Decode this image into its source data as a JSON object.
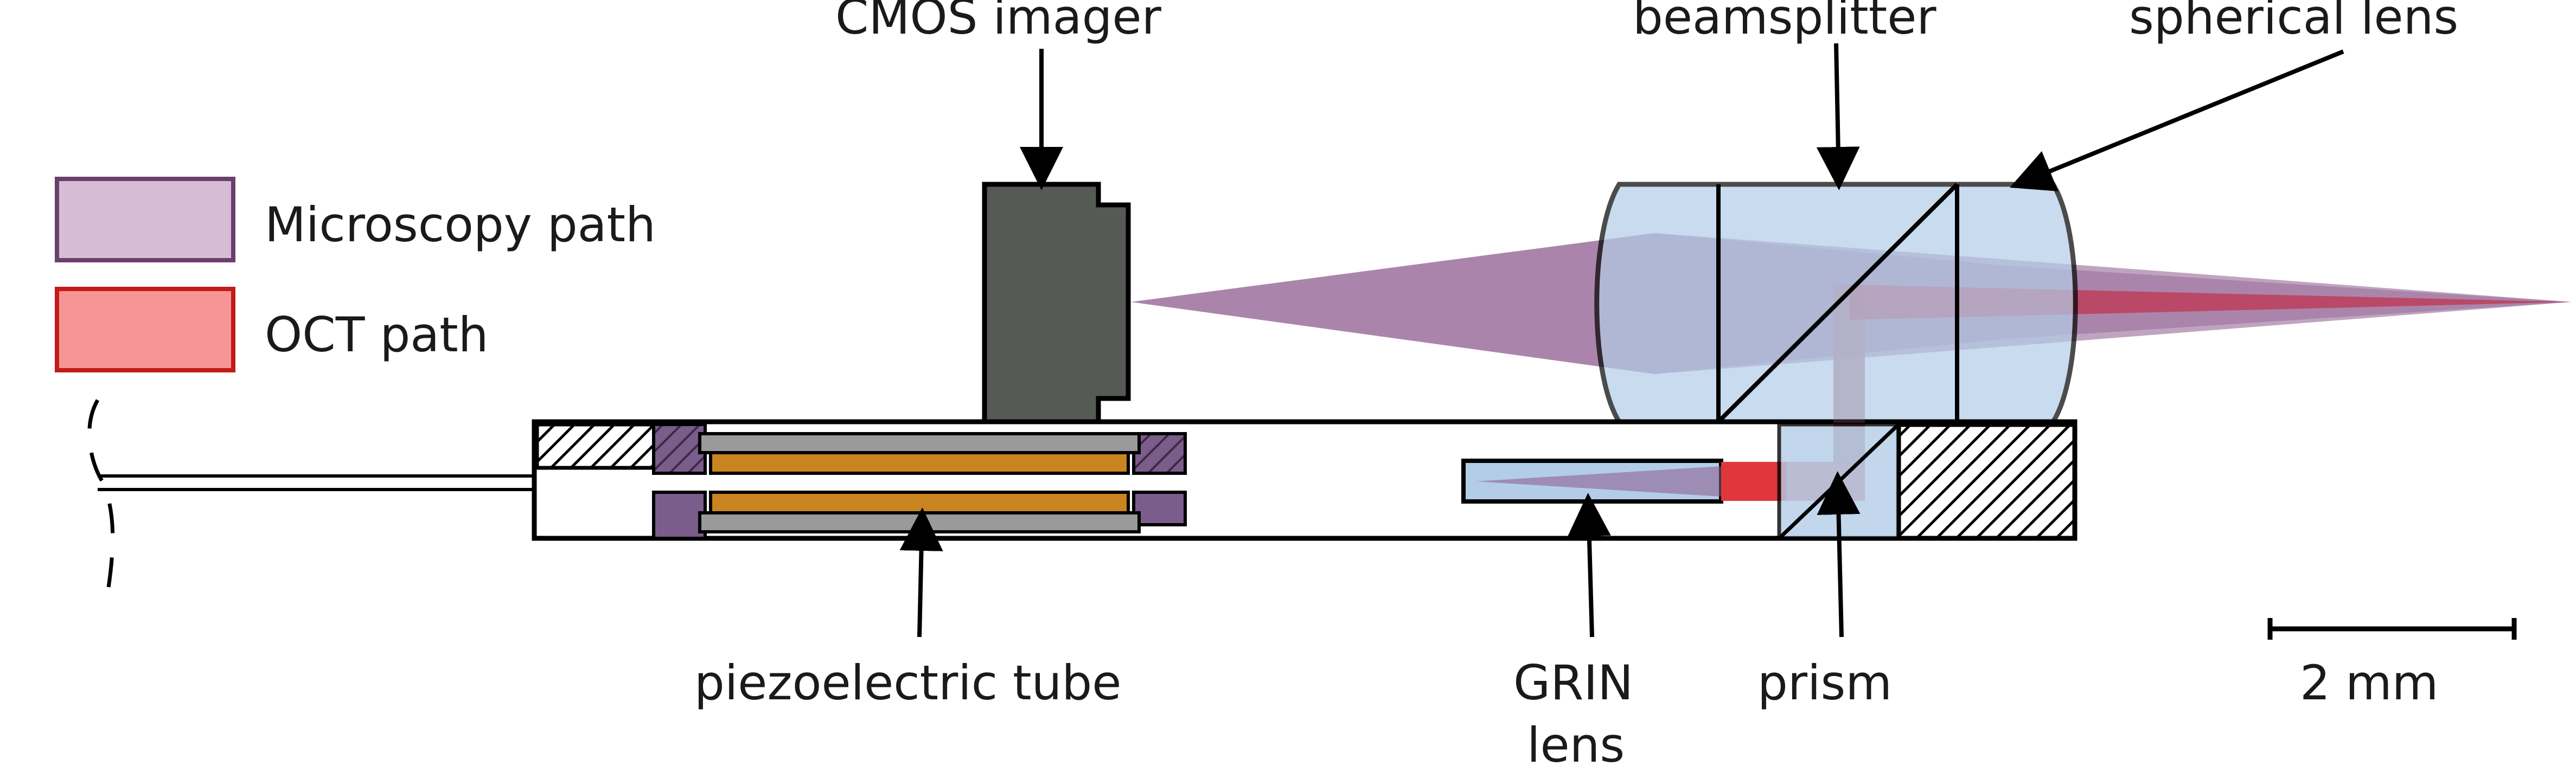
{
  "legend": [
    {
      "label": "Microscopy path",
      "fill": "#d6bdd5",
      "stroke": "#6a3f6e"
    },
    {
      "label": "OCT path",
      "fill": "#f79595",
      "stroke": "#c31a1a"
    }
  ],
  "labels": {
    "cmos": "CMOS imager",
    "beamsplitter": "beamsplitter",
    "spherical_lens": "spherical lens",
    "piezo": "piezoelectric tube",
    "grin_line1": "GRIN",
    "grin_line2": "lens",
    "prism": "prism",
    "scale": "2 mm"
  },
  "colors": {
    "optic_glass": "#b3cde8",
    "cmos_body": "#565a55",
    "piezo_core": "#c9841f",
    "piezo_sleeve": "#9a9a9a",
    "mount": "#7a5d8a",
    "microscopy_beam": "#8a5a8a",
    "oct_beam": "#e0373d"
  }
}
